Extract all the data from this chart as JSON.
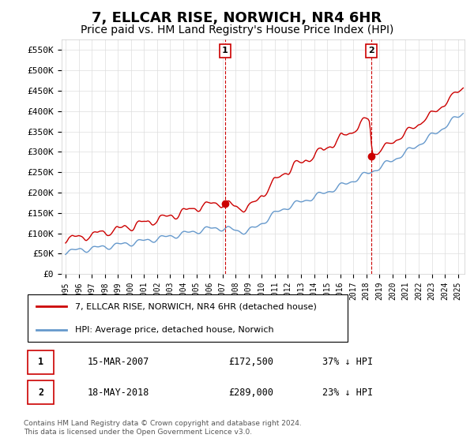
{
  "title": "7, ELLCAR RISE, NORWICH, NR4 6HR",
  "subtitle": "Price paid vs. HM Land Registry's House Price Index (HPI)",
  "title_fontsize": 13,
  "subtitle_fontsize": 10,
  "ylabel_ticks": [
    "£0",
    "£50K",
    "£100K",
    "£150K",
    "£200K",
    "£250K",
    "£300K",
    "£350K",
    "£400K",
    "£450K",
    "£500K",
    "£550K"
  ],
  "ytick_values": [
    0,
    50000,
    100000,
    150000,
    200000,
    250000,
    300000,
    350000,
    400000,
    450000,
    500000,
    550000
  ],
  "ylim": [
    0,
    575000
  ],
  "xlim_start": 1995.0,
  "xlim_end": 2025.5,
  "marker1_x": 2007.2,
  "marker1_y": 172500,
  "marker2_x": 2018.38,
  "marker2_y": 289000,
  "marker1_label": "1",
  "marker2_label": "2",
  "vline1_x": 2007.2,
  "vline2_x": 2018.38,
  "legend_line1": "7, ELLCAR RISE, NORWICH, NR4 6HR (detached house)",
  "legend_line2": "HPI: Average price, detached house, Norwich",
  "table_row1": [
    "1",
    "15-MAR-2007",
    "£172,500",
    "37% ↓ HPI"
  ],
  "table_row2": [
    "2",
    "18-MAY-2018",
    "£289,000",
    "23% ↓ HPI"
  ],
  "footnote": "Contains HM Land Registry data © Crown copyright and database right 2024.\nThis data is licensed under the Open Government Licence v3.0.",
  "line_color_property": "#cc0000",
  "line_color_hpi": "#6699cc",
  "background_color": "#ffffff",
  "grid_color": "#dddddd"
}
